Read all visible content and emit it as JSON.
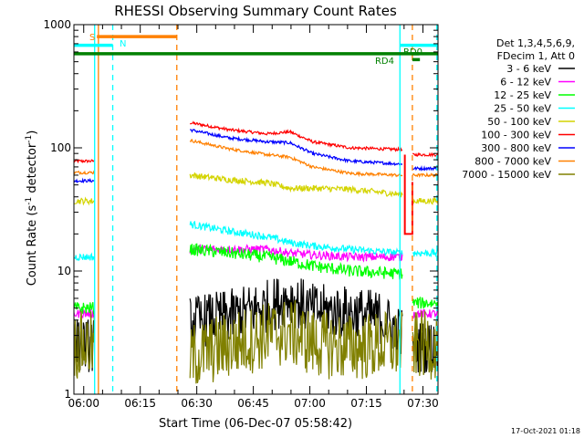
{
  "chart_data": {
    "type": "line",
    "title": "RHESSI Observing Summary Count Rates",
    "xlabel": "Start Time (06-Dec-07 05:58:42)",
    "ylabel": "Count Rate (s⁻¹ detector⁻¹)",
    "ylabel_main": "Count Rate (s",
    "ylabel_sup1": "-1",
    "ylabel_mid": " detector",
    "ylabel_sup2": "-1",
    "ylabel_end": ")",
    "y_scale": "log",
    "ylim": [
      1,
      1000
    ],
    "xlim_min": [
      -1.3,
      95.3
    ],
    "x_unit": "minutes after 05:58:42",
    "x_ticks": [
      {
        "t": 1.3,
        "label": "06:00"
      },
      {
        "t": 16.3,
        "label": "06:15"
      },
      {
        "t": 31.3,
        "label": "06:30"
      },
      {
        "t": 46.3,
        "label": "06:45"
      },
      {
        "t": 61.3,
        "label": "07:00"
      },
      {
        "t": 76.3,
        "label": "07:15"
      },
      {
        "t": 91.3,
        "label": "07:30"
      }
    ],
    "y_ticks": [
      {
        "v": 1,
        "label": "1"
      },
      {
        "v": 10,
        "label": "10"
      },
      {
        "v": 100,
        "label": "100"
      },
      {
        "v": 1000,
        "label": "1000"
      }
    ],
    "legend": {
      "placement": "right",
      "header": [
        "Det 1,3,4,5,6,9,",
        "FDecim 1, Att 0"
      ],
      "entries": [
        {
          "label": "3 - 6 keV",
          "color": "#000000"
        },
        {
          "label": "6 - 12 keV",
          "color": "#ff00ff"
        },
        {
          "label": "12 - 25 keV",
          "color": "#00ff00"
        },
        {
          "label": "25 - 50 keV",
          "color": "#00ffff"
        },
        {
          "label": "50 - 100 keV",
          "color": "#d4d400"
        },
        {
          "label": "100 - 300 keV",
          "color": "#ff0000"
        },
        {
          "label": "300 - 800 keV",
          "color": "#0000ff"
        },
        {
          "label": "800 - 7000 keV",
          "color": "#ff8000"
        },
        {
          "label": "7000 - 15000 keV",
          "color": "#808000"
        }
      ]
    },
    "series": [
      {
        "name": "100 - 300 keV",
        "color": "#ff0000",
        "pre": 78,
        "points": [
          [
            29.5,
            160
          ],
          [
            40,
            140
          ],
          [
            50,
            130
          ],
          [
            56,
            135
          ],
          [
            62,
            112
          ],
          [
            72,
            100
          ],
          [
            85,
            97
          ],
          [
            86,
            95
          ]
        ],
        "post": 88
      },
      {
        "name": "300 - 800 keV",
        "color": "#0000ff",
        "pre": 54,
        "points": [
          [
            29.5,
            140
          ],
          [
            40,
            120
          ],
          [
            50,
            112
          ],
          [
            56,
            110
          ],
          [
            62,
            90
          ],
          [
            72,
            78
          ],
          [
            85,
            74
          ],
          [
            86,
            73
          ]
        ],
        "post": 68
      },
      {
        "name": "800 - 7000 keV",
        "color": "#ff8000",
        "pre": 63,
        "points": [
          [
            29.5,
            115
          ],
          [
            40,
            98
          ],
          [
            50,
            88
          ],
          [
            56,
            84
          ],
          [
            62,
            70
          ],
          [
            72,
            62
          ],
          [
            85,
            60
          ],
          [
            86,
            60
          ]
        ],
        "post": 60
      },
      {
        "name": "50 - 100 keV",
        "color": "#d4d400",
        "pre": 37,
        "points": [
          [
            29.5,
            60
          ],
          [
            40,
            55
          ],
          [
            50,
            52
          ],
          [
            56,
            47
          ],
          [
            62,
            47
          ],
          [
            72,
            46
          ],
          [
            85,
            42
          ],
          [
            86,
            42
          ]
        ],
        "post": 37
      },
      {
        "name": "25 - 50 keV",
        "color": "#00ffff",
        "pre": 13,
        "points": [
          [
            29.5,
            24
          ],
          [
            40,
            21
          ],
          [
            50,
            19
          ],
          [
            56,
            17
          ],
          [
            62,
            16
          ],
          [
            72,
            15
          ],
          [
            85,
            14
          ],
          [
            86,
            14
          ]
        ],
        "post": 14
      },
      {
        "name": "6 - 12 keV",
        "color": "#ff00ff",
        "pre": 4.5,
        "points": [
          [
            29.5,
            15
          ],
          [
            40,
            15
          ],
          [
            50,
            15
          ],
          [
            56,
            14
          ],
          [
            62,
            13.5
          ],
          [
            72,
            13
          ],
          [
            85,
            13
          ],
          [
            86,
            13
          ]
        ],
        "post": 4.5
      },
      {
        "name": "12 - 25 keV",
        "color": "#00ff00",
        "pre": 5,
        "points": [
          [
            29.5,
            15
          ],
          [
            40,
            14
          ],
          [
            50,
            13
          ],
          [
            56,
            12
          ],
          [
            62,
            11
          ],
          [
            72,
            10
          ],
          [
            85,
            9.5
          ],
          [
            86,
            9.5
          ]
        ],
        "post": 5.5
      },
      {
        "name": "3 - 6 keV",
        "color": "#000000",
        "pre": 2.5,
        "points": [
          [
            29.5,
            3.8
          ],
          [
            40,
            4.3
          ],
          [
            50,
            5.2
          ],
          [
            56,
            6
          ],
          [
            62,
            4.8
          ],
          [
            72,
            4.6
          ],
          [
            80,
            4.2
          ],
          [
            86,
            3.0
          ]
        ],
        "post": 2.4
      },
      {
        "name": "7000 - 15000 keV",
        "color": "#808000",
        "pre": 2.5,
        "points": [
          [
            29.5,
            2.0
          ],
          [
            40,
            2.5
          ],
          [
            50,
            3.0
          ],
          [
            56,
            3.2
          ],
          [
            62,
            2.6
          ],
          [
            72,
            2.4
          ],
          [
            80,
            2.5
          ],
          [
            86,
            2.5
          ]
        ],
        "post": 2.5
      }
    ],
    "attenuator_drop": {
      "t": 86.5,
      "from": 88,
      "to": 20,
      "back_t": 88.5,
      "color": "#ff0000"
    },
    "state_bars": [
      {
        "label": "S",
        "color": "#ff8000",
        "t0": 4.8,
        "t1": 26,
        "v": 800
      },
      {
        "label": "N",
        "color": "#00ffff",
        "t0": -1.3,
        "t1": 9,
        "v": 680
      },
      {
        "label": "",
        "color": "#00ffff",
        "t0": 85.2,
        "t1": 95.3,
        "v": 680
      },
      {
        "label": "",
        "color": "#008000",
        "t0": -1.3,
        "t1": 95.3,
        "v": 580
      },
      {
        "label": "RD0",
        "color": "#008000",
        "t0": 88.3,
        "t1": 90.3,
        "v": 580
      },
      {
        "label": "RD4",
        "color": "#008000",
        "t0": 88.5,
        "t1": 90.5,
        "v": 520
      }
    ],
    "vlines": [
      {
        "t": 4.2,
        "color": "#00ffff",
        "style": "solid"
      },
      {
        "t": 5.2,
        "color": "#ff8000",
        "style": "solid"
      },
      {
        "t": 9.0,
        "color": "#00ffff",
        "style": "dash"
      },
      {
        "t": 26.0,
        "color": "#ff8000",
        "style": "dash"
      },
      {
        "t": 85.2,
        "color": "#00ffff",
        "style": "solid"
      },
      {
        "t": 88.5,
        "color": "#ff8000",
        "style": "dash"
      },
      {
        "t": 95.0,
        "color": "#00ffff",
        "style": "dash"
      }
    ]
  },
  "footer": {
    "timestamp": "17-Oct-2021 01:18"
  }
}
